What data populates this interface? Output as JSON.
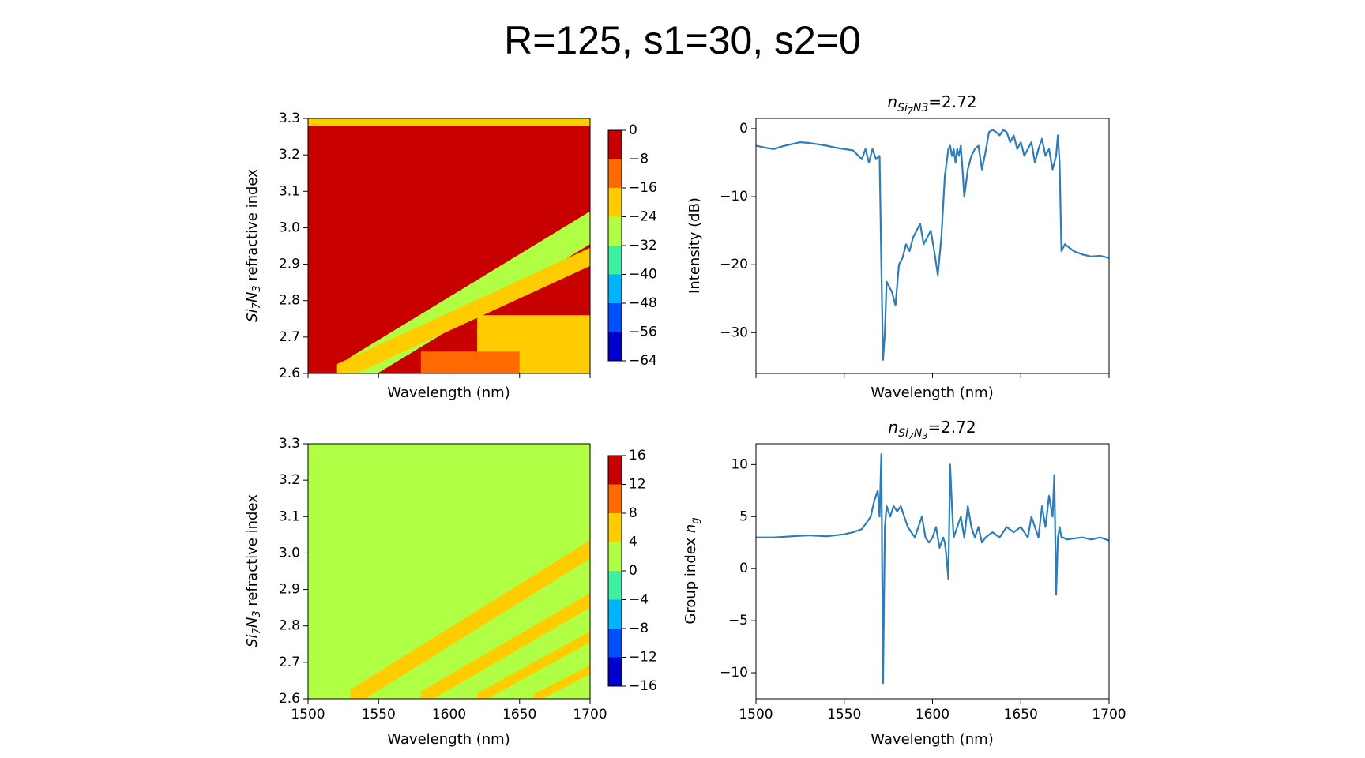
{
  "figure": {
    "title": "R=125, s1=30, s2=0"
  },
  "chart_data": [
    {
      "id": "transmission_map",
      "type": "heatmap",
      "xlabel": "Wavelength (nm)",
      "ylabel": "Si7N3 refractive index",
      "xlim": [
        1500,
        1700
      ],
      "ylim": [
        2.6,
        3.3
      ],
      "x_ticks_labeled": false,
      "y_ticks": [
        "2.6",
        "2.7",
        "2.8",
        "2.9",
        "3.0",
        "3.1",
        "3.2",
        "3.3"
      ],
      "colormap": "jet",
      "colorbar_ticks": [
        "0",
        "−8",
        "−16",
        "−24",
        "−32",
        "−40",
        "−48",
        "−56",
        "−64"
      ],
      "levels": [
        0,
        -8,
        -16,
        -24,
        -32,
        -40,
        -48,
        -56,
        -64
      ],
      "level_colors": [
        "#c80000",
        "#ff6a00",
        "#ffcc00",
        "#b0ff45",
        "#3ff0a0",
        "#00b4ff",
        "#0050ff",
        "#0000cc"
      ],
      "background_value": -4,
      "features": [
        {
          "kind": "top_band",
          "y": [
            3.28,
            3.3
          ],
          "value": -20
        },
        {
          "kind": "diagonal_band",
          "from": [
            1530,
            2.6
          ],
          "to": [
            1700,
            3.0
          ],
          "width": 0.09,
          "value": -28
        },
        {
          "kind": "diagonal_band",
          "from": [
            1520,
            2.6
          ],
          "to": [
            1700,
            2.92
          ],
          "width": 0.05,
          "value": -20
        },
        {
          "kind": "patch",
          "x": [
            1620,
            1700
          ],
          "y": [
            2.6,
            2.76
          ],
          "value": -20
        },
        {
          "kind": "patch",
          "x": [
            1580,
            1650
          ],
          "y": [
            2.6,
            2.66
          ],
          "value": -12
        }
      ]
    },
    {
      "id": "intensity_line",
      "type": "line",
      "title": "n_{Si_7N3}=2.72",
      "title_main": "n",
      "title_sub": "Si",
      "title_sub2": "7",
      "title_sub3": "N3",
      "title_value": "=2.72",
      "xlabel": "Wavelength (nm)",
      "ylabel": "Intensity (dB)",
      "xlim": [
        1500,
        1700
      ],
      "ylim": [
        -36,
        1.5
      ],
      "x_ticks_labeled": false,
      "y_ticks": [
        0,
        -10,
        -20,
        -30
      ],
      "color": "#2f7db8",
      "x": [
        1500,
        1505,
        1510,
        1515,
        1520,
        1525,
        1530,
        1535,
        1540,
        1545,
        1550,
        1555,
        1560,
        1562,
        1564,
        1566,
        1568,
        1570,
        1571,
        1572,
        1573,
        1574,
        1575,
        1577,
        1579,
        1581,
        1583,
        1585,
        1587,
        1589,
        1591,
        1593,
        1595,
        1597,
        1599,
        1601,
        1603,
        1605,
        1607,
        1609,
        1610,
        1611,
        1612,
        1613,
        1614,
        1615,
        1616,
        1617,
        1618,
        1619,
        1620,
        1621,
        1622,
        1624,
        1626,
        1628,
        1630,
        1632,
        1634,
        1636,
        1638,
        1640,
        1642,
        1644,
        1646,
        1648,
        1650,
        1652,
        1654,
        1656,
        1658,
        1660,
        1662,
        1664,
        1666,
        1668,
        1670,
        1671,
        1672,
        1673,
        1675,
        1680,
        1685,
        1690,
        1695,
        1700
      ],
      "y": [
        -2.5,
        -2.8,
        -3.0,
        -2.6,
        -2.3,
        -2.0,
        -2.1,
        -2.3,
        -2.5,
        -2.8,
        -3.0,
        -3.2,
        -4.5,
        -3.0,
        -5.0,
        -3.0,
        -4.5,
        -4.0,
        -20,
        -34,
        -30,
        -22.5,
        -23,
        -24,
        -26,
        -20,
        -19,
        -17,
        -18,
        -16,
        -15,
        -14,
        -17,
        -16,
        -15,
        -18,
        -21.5,
        -16,
        -7,
        -3,
        -2.5,
        -4,
        -3,
        -5,
        -3,
        -4,
        -2.5,
        -6,
        -10,
        -8,
        -6,
        -5,
        -4,
        -3,
        -2.5,
        -6,
        -3.5,
        -0.5,
        -0.2,
        -0.5,
        -1,
        -0.2,
        -0.5,
        -2,
        -1,
        -3,
        -2,
        -4,
        -3,
        -2,
        -5,
        -3,
        -1.5,
        -4,
        -3,
        -6,
        -4,
        -1,
        -5,
        -18,
        -17,
        -18,
        -18.5,
        -18.8,
        -18.7,
        -19
      ]
    },
    {
      "id": "group_index_map",
      "type": "heatmap",
      "xlabel": "Wavelength (nm)",
      "ylabel": "Si7N3 refractive index",
      "xlim": [
        1500,
        1700
      ],
      "ylim": [
        2.6,
        3.3
      ],
      "x_ticks": [
        "1500",
        "1550",
        "1600",
        "1650",
        "1700"
      ],
      "y_ticks": [
        "2.6",
        "2.7",
        "2.8",
        "2.9",
        "3.0",
        "3.1",
        "3.2",
        "3.3"
      ],
      "colormap": "jet",
      "colorbar_ticks": [
        "16",
        "12",
        "8",
        "4",
        "0",
        "−4",
        "−8",
        "−12",
        "−16"
      ],
      "levels": [
        16,
        12,
        8,
        4,
        0,
        -4,
        -8,
        -12,
        -16
      ],
      "level_colors": [
        "#c80000",
        "#ff6a00",
        "#ffcc00",
        "#b0ff45",
        "#3ff0a0",
        "#00b4ff",
        "#0050ff",
        "#0000cc"
      ],
      "background_value": 2,
      "features": [
        {
          "kind": "diagonal_band",
          "from": [
            1530,
            2.6
          ],
          "to": [
            1700,
            3.01
          ],
          "width": 0.05,
          "value": 6
        },
        {
          "kind": "diagonal_band",
          "from": [
            1580,
            2.6
          ],
          "to": [
            1700,
            2.87
          ],
          "width": 0.04,
          "value": 6
        },
        {
          "kind": "diagonal_band",
          "from": [
            1620,
            2.6
          ],
          "to": [
            1700,
            2.77
          ],
          "width": 0.03,
          "value": 6
        },
        {
          "kind": "diagonal_band",
          "from": [
            1660,
            2.6
          ],
          "to": [
            1700,
            2.68
          ],
          "width": 0.025,
          "value": 6
        }
      ]
    },
    {
      "id": "group_index_line",
      "type": "line",
      "title_main": "n",
      "title_sub": "Si",
      "title_sub2": "7",
      "title_sub3": "N",
      "title_sub4": "3",
      "title_value": "=2.72",
      "xlabel": "Wavelength (nm)",
      "ylabel": "Group index n_g",
      "ylabel_main": "Group index ",
      "ylabel_italic": "n",
      "ylabel_sub": "g",
      "xlim": [
        1500,
        1700
      ],
      "ylim": [
        -12.5,
        12
      ],
      "x_ticks": [
        1500,
        1550,
        1600,
        1650,
        1700
      ],
      "y_ticks": [
        10,
        5,
        0,
        -5,
        -10
      ],
      "color": "#2f7db8",
      "x": [
        1500,
        1510,
        1520,
        1530,
        1540,
        1550,
        1555,
        1560,
        1563,
        1565,
        1567,
        1569,
        1570,
        1571,
        1572,
        1573,
        1574,
        1576,
        1578,
        1580,
        1582,
        1584,
        1586,
        1588,
        1590,
        1592,
        1594,
        1596,
        1598,
        1600,
        1602,
        1604,
        1606,
        1607,
        1608,
        1609,
        1610,
        1611,
        1612,
        1614,
        1616,
        1618,
        1620,
        1622,
        1624,
        1626,
        1628,
        1630,
        1634,
        1638,
        1642,
        1646,
        1650,
        1654,
        1656,
        1658,
        1660,
        1662,
        1664,
        1666,
        1668,
        1669,
        1670,
        1671,
        1672,
        1673,
        1674,
        1676,
        1680,
        1685,
        1690,
        1695,
        1700
      ],
      "y": [
        3,
        3,
        3.1,
        3.2,
        3.1,
        3.3,
        3.5,
        3.8,
        4.5,
        5,
        6.5,
        7.5,
        5,
        11,
        -11,
        4,
        6,
        5,
        6,
        5.5,
        6,
        5,
        4,
        3.5,
        3,
        4,
        5,
        3,
        2.5,
        3,
        4,
        2,
        3,
        2.5,
        1,
        -1,
        10,
        6,
        3,
        4,
        5,
        3,
        6,
        4,
        3,
        4,
        2.5,
        3,
        3.5,
        3,
        4,
        3.5,
        4,
        3,
        5,
        4,
        3,
        6,
        4,
        7,
        5,
        9,
        -2.5,
        3,
        4,
        3,
        3,
        2.8,
        2.9,
        3,
        2.8,
        3,
        2.7
      ]
    }
  ]
}
